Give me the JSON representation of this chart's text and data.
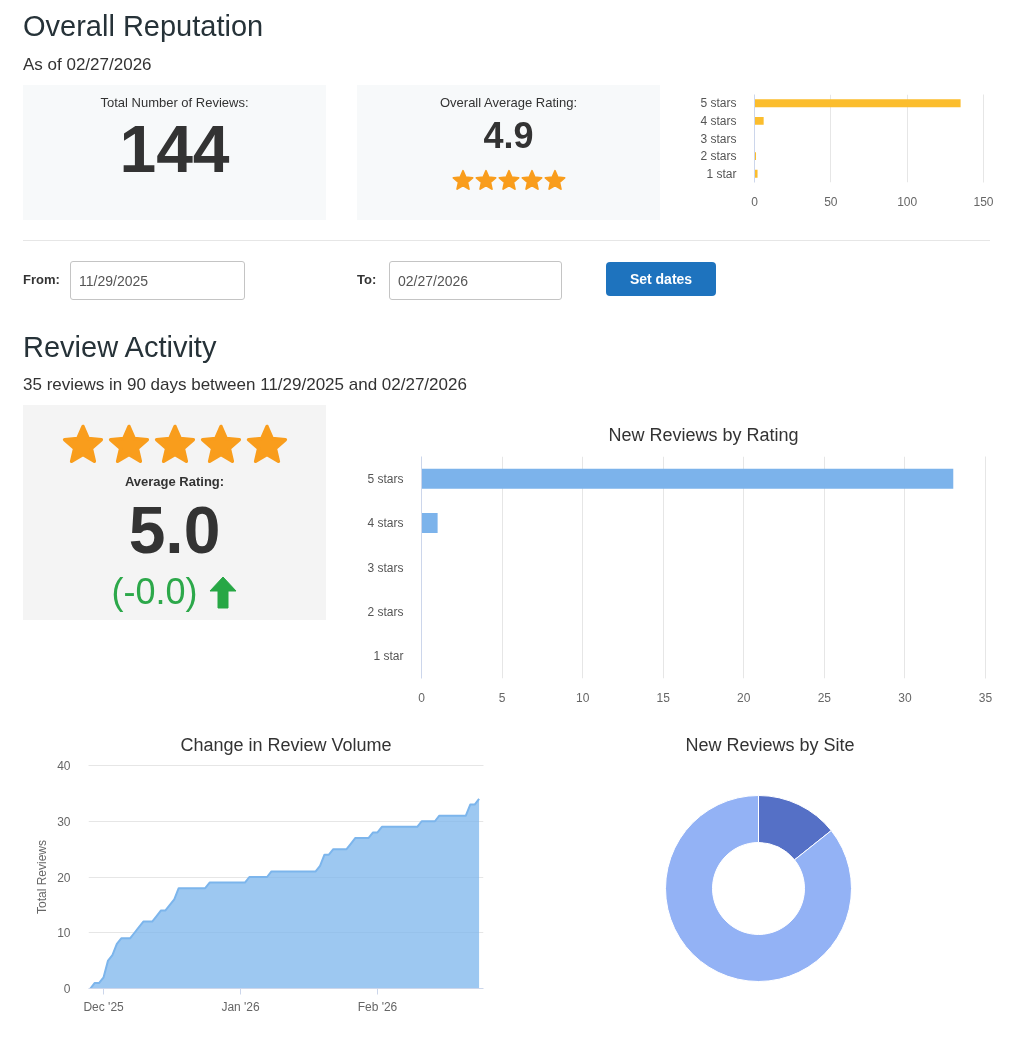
{
  "chart_data": [
    {
      "type": "other",
      "title": "Overall Reputation",
      "subtitle": "As of 02/27/2026",
      "annotations": [
        "Total Number of Reviews:",
        "144"
      ]
    },
    {
      "type": "other",
      "annotations": [
        "Overall Average Rating:",
        "4.9"
      ]
    },
    {
      "type": "bar",
      "orientation": "horizontal",
      "categories": [
        "5 stars",
        "4 stars",
        "3 stars",
        "2 stars",
        "1 star"
      ],
      "values": [
        135,
        6,
        0,
        1,
        2
      ],
      "color": "#fbbd2d",
      "xlim": [
        0,
        150
      ],
      "xticks": [
        0,
        50,
        100,
        150
      ],
      "grid": "x"
    },
    {
      "type": "other",
      "annotations": [
        "From:",
        "11/29/2025",
        "To:",
        "02/27/2026",
        "Set dates"
      ]
    },
    {
      "type": "other",
      "title": "Review Activity",
      "subtitle": "35 reviews in 90 days between 11/29/2025 and 02/27/2026",
      "annotations": [
        "Average Rating:",
        "5.0",
        "(-0.0)"
      ]
    },
    {
      "type": "bar",
      "orientation": "horizontal",
      "title": "New Reviews by Rating",
      "categories": [
        "5 stars",
        "4 stars",
        "3 stars",
        "2 stars",
        "1 star"
      ],
      "values": [
        33,
        1,
        0,
        0,
        0
      ],
      "color": "#7cb3eb",
      "xlim": [
        0,
        35
      ],
      "xticks": [
        0,
        5,
        10,
        15,
        20,
        25,
        30,
        35
      ],
      "grid": "x"
    },
    {
      "type": "area",
      "title": "Change in Review Volume",
      "ylabel": "Total Reviews",
      "x": [
        "2025-11-28",
        "2025-11-29",
        "2025-11-30",
        "2025-12-01",
        "2025-12-02",
        "2025-12-03",
        "2025-12-04",
        "2025-12-05",
        "2025-12-07",
        "2025-12-08",
        "2025-12-09",
        "2025-12-10",
        "2025-12-12",
        "2025-12-13",
        "2025-12-14",
        "2025-12-15",
        "2025-12-16",
        "2025-12-17",
        "2025-12-18",
        "2025-12-24",
        "2025-12-25",
        "2026-01-02",
        "2026-01-03",
        "2026-01-07",
        "2026-01-08",
        "2026-01-18",
        "2026-01-19",
        "2026-01-20",
        "2026-01-21",
        "2026-01-22",
        "2026-01-25",
        "2026-01-26",
        "2026-01-27",
        "2026-01-30",
        "2026-01-31",
        "2026-02-01",
        "2026-02-02",
        "2026-02-10",
        "2026-02-11",
        "2026-02-14",
        "2026-02-15",
        "2026-02-21",
        "2026-02-22",
        "2026-02-23",
        "2026-02-24"
      ],
      "values": [
        0,
        1,
        1,
        2,
        5,
        6,
        8,
        9,
        9,
        10,
        11,
        12,
        12,
        13,
        14,
        14,
        15,
        16,
        18,
        18,
        19,
        19,
        20,
        20,
        21,
        21,
        22,
        24,
        24,
        25,
        25,
        26,
        27,
        27,
        28,
        28,
        29,
        29,
        30,
        30,
        31,
        31,
        33,
        33,
        34
      ],
      "color": "#7cb5ec",
      "xlim": [
        "2025-11-27T14:00",
        "2026-02-25"
      ],
      "xticks": [
        {
          "value": "2025-12-01",
          "label": "Dec '25"
        },
        {
          "value": "2026-01-01",
          "label": "Jan '26"
        },
        {
          "value": "2026-02-01",
          "label": "Feb '26"
        }
      ],
      "ylim": [
        0,
        40
      ],
      "yticks": [
        0,
        10,
        20,
        30,
        40
      ],
      "grid": "y"
    },
    {
      "type": "donut",
      "title": "New Reviews by Site",
      "categories": [
        null,
        null
      ],
      "values": [
        14.3,
        85.7
      ],
      "colors": [
        "#5570c6",
        "#93b2f5"
      ]
    }
  ]
}
